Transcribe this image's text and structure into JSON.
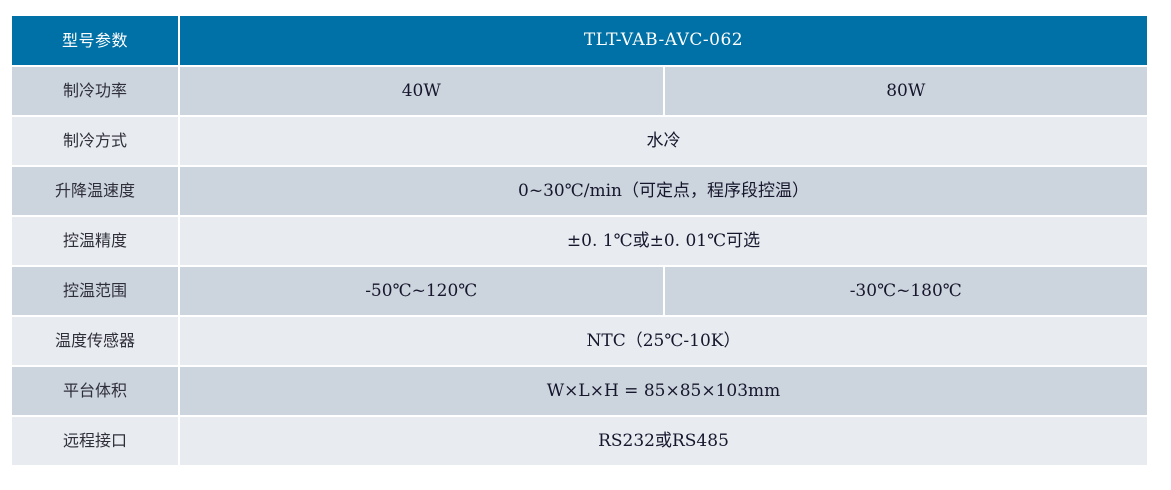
{
  "table": {
    "header": {
      "param_label": "型号参数",
      "model_value": "TLT-VAB-AVC-062"
    },
    "rows": [
      {
        "label": "制冷功率",
        "values": [
          "40W",
          "80W"
        ]
      },
      {
        "label": "制冷方式",
        "values": [
          "水冷"
        ]
      },
      {
        "label": "升降温速度",
        "values": [
          "0~30℃/min（可定点，程序段控温）"
        ]
      },
      {
        "label": "控温精度",
        "values": [
          "±0. 1℃或±0. 01℃可选"
        ]
      },
      {
        "label": "控温范围",
        "values": [
          "-50℃~120℃",
          "-30℃~180℃"
        ]
      },
      {
        "label": "温度传感器",
        "values": [
          "NTC（25℃-10K）"
        ]
      },
      {
        "label": "平台体积",
        "values": [
          "W×L×H = 85×85×103mm"
        ]
      },
      {
        "label": "远程接口",
        "values": [
          "RS232或RS485"
        ]
      }
    ],
    "colors": {
      "header_bg": "#0071a6",
      "header_text": "#ffffff",
      "row_dark_bg": "#ccd4dd",
      "row_light_bg": "#e8ebf0",
      "cell_text": "#16162c",
      "label_text": "#2f2f3a",
      "gap": "#ffffff"
    }
  }
}
